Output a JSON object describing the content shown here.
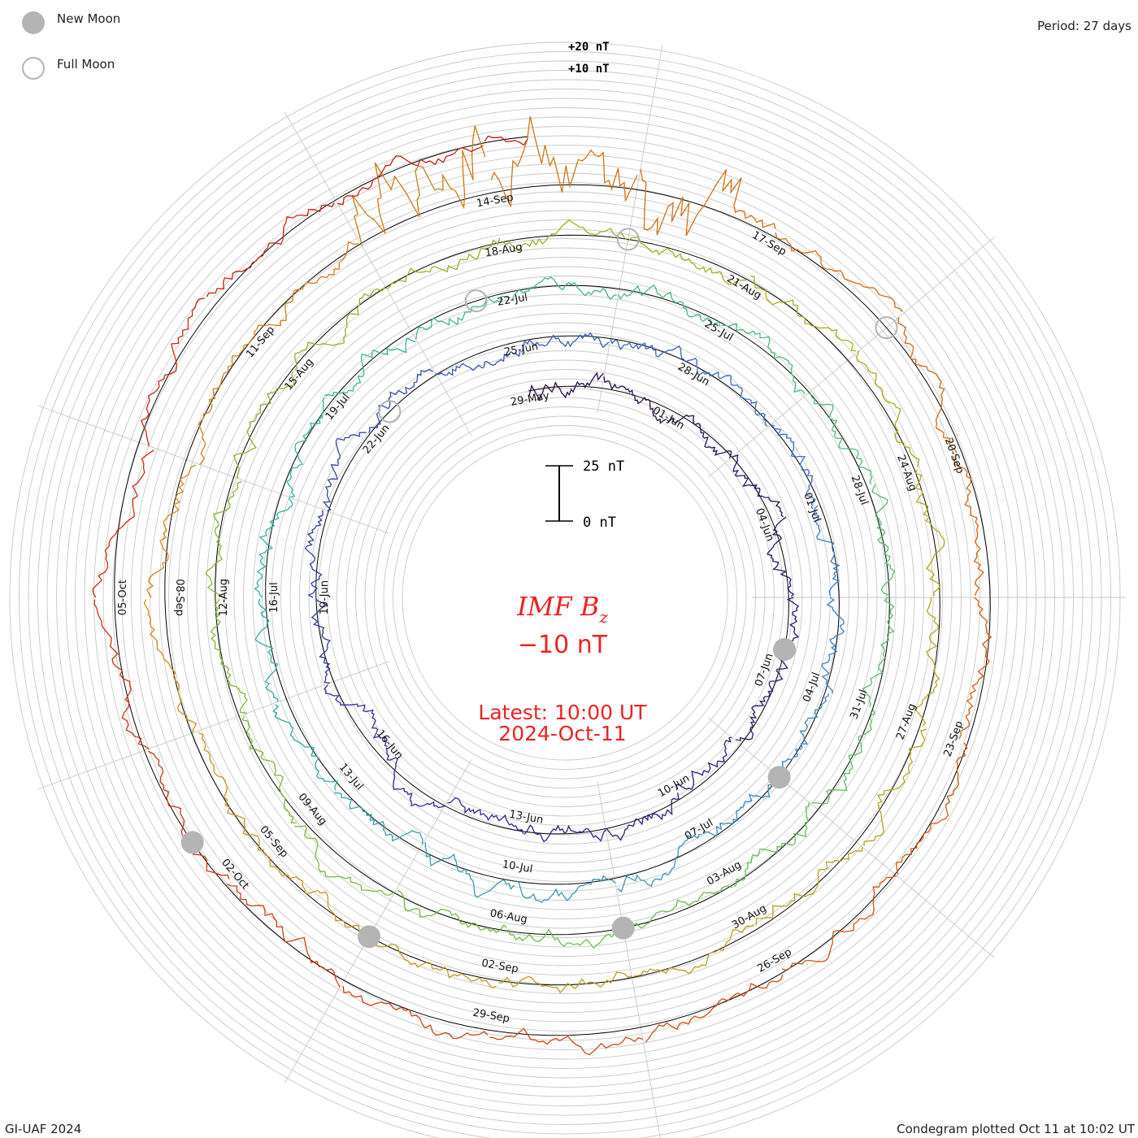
{
  "legend": {
    "new_moon": "New Moon",
    "full_moon": "Full Moon",
    "new_moon_color": "#b4b4b4",
    "full_moon_color": "#b4b4b4"
  },
  "period": "Period: 27 days",
  "credit": "GI-UAF 2024",
  "plotted": "Condegram plotted Oct 11 at 10:02 UT",
  "chart_data": {
    "type": "line",
    "variant": "condegram-spiral",
    "period_days": 27,
    "center_title": "IMF B",
    "center_title_sub": "z",
    "center_value": "−10 nT",
    "latest_time": "Latest: 10:00 UT",
    "latest_date": "2024-Oct-11",
    "center_color": "#ee2222",
    "scale_bar_top": "25 nT",
    "scale_bar_bottom": "0 nT",
    "scale_top_label": "+20 nT",
    "scale_mid_label": "+10 nT",
    "grid": true,
    "start_date": "2024-05-29",
    "end_date": "2024-10-11",
    "date_labels": [
      {
        "text": "29-May",
        "day": 0
      },
      {
        "text": "01-Jun",
        "day": 3
      },
      {
        "text": "04-Jun",
        "day": 6
      },
      {
        "text": "07-Jun",
        "day": 9
      },
      {
        "text": "10-Jun",
        "day": 12
      },
      {
        "text": "13-Jun",
        "day": 15
      },
      {
        "text": "16-Jun",
        "day": 18
      },
      {
        "text": "19-Jun",
        "day": 21
      },
      {
        "text": "22-Jun",
        "day": 24
      },
      {
        "text": "25-Jun",
        "day": 27
      },
      {
        "text": "28-Jun",
        "day": 30
      },
      {
        "text": "01-Jul",
        "day": 33
      },
      {
        "text": "04-Jul",
        "day": 36
      },
      {
        "text": "07-Jul",
        "day": 39
      },
      {
        "text": "10-Jul",
        "day": 42
      },
      {
        "text": "13-Jul",
        "day": 45
      },
      {
        "text": "16-Jul",
        "day": 48
      },
      {
        "text": "19-Jul",
        "day": 51
      },
      {
        "text": "22-Jul",
        "day": 54
      },
      {
        "text": "25-Jul",
        "day": 57
      },
      {
        "text": "28-Jul",
        "day": 60
      },
      {
        "text": "31-Jul",
        "day": 63
      },
      {
        "text": "03-Aug",
        "day": 66
      },
      {
        "text": "06-Aug",
        "day": 69
      },
      {
        "text": "09-Aug",
        "day": 72
      },
      {
        "text": "12-Aug",
        "day": 75
      },
      {
        "text": "15-Aug",
        "day": 78
      },
      {
        "text": "18-Aug",
        "day": 81
      },
      {
        "text": "21-Aug",
        "day": 84
      },
      {
        "text": "24-Aug",
        "day": 87
      },
      {
        "text": "27-Aug",
        "day": 90
      },
      {
        "text": "30-Aug",
        "day": 93
      },
      {
        "text": "02-Sep",
        "day": 96
      },
      {
        "text": "05-Sep",
        "day": 99
      },
      {
        "text": "08-Sep",
        "day": 102
      },
      {
        "text": "11-Sep",
        "day": 105
      },
      {
        "text": "14-Sep",
        "day": 108
      },
      {
        "text": "17-Sep",
        "day": 111
      },
      {
        "text": "20-Sep",
        "day": 114
      },
      {
        "text": "23-Sep",
        "day": 117
      },
      {
        "text": "26-Sep",
        "day": 120
      },
      {
        "text": "29-Sep",
        "day": 123
      },
      {
        "text": "02-Oct",
        "day": 126
      },
      {
        "text": "05-Oct",
        "day": 129
      }
    ],
    "new_moons": [
      "2024-06-06",
      "2024-07-05",
      "2024-08-04",
      "2024-09-03",
      "2024-10-02"
    ],
    "full_moons": [
      "2024-06-22",
      "2024-07-21",
      "2024-08-19",
      "2024-09-18"
    ]
  }
}
